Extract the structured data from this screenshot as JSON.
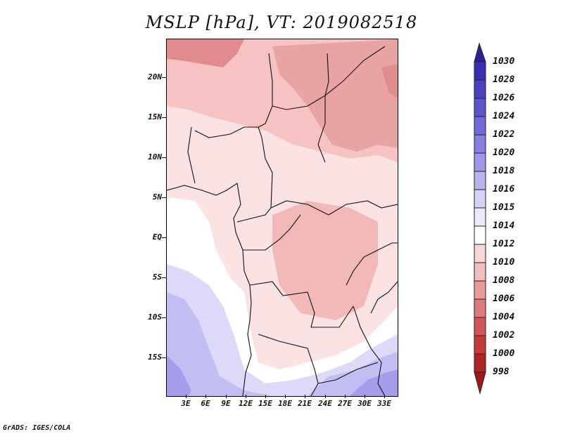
{
  "title": "MSLP [hPa], VT: 2019082518",
  "footer": "GrADS: IGES/COLA",
  "map": {
    "y_labels": [
      "20N",
      "15N",
      "10N",
      "5N",
      "EQ",
      "5S",
      "10S",
      "15S"
    ],
    "x_labels": [
      "3E",
      "6E",
      "9E",
      "12E",
      "15E",
      "18E",
      "21E",
      "24E",
      "27E",
      "30E",
      "33E"
    ],
    "lat_range": [
      -19,
      24
    ],
    "lon_range": [
      0,
      35
    ]
  },
  "colorbar": {
    "levels": [
      "1030",
      "1028",
      "1026",
      "1024",
      "1022",
      "1020",
      "1018",
      "1016",
      "1015",
      "1014",
      "1012",
      "1010",
      "1008",
      "1006",
      "1004",
      "1002",
      "1000",
      "998"
    ],
    "colors": [
      "#2b1f9c",
      "#3a2fb3",
      "#4a40c4",
      "#5c55d0",
      "#7169db",
      "#857ee3",
      "#9e97ea",
      "#b9b4f0",
      "#d4d2f6",
      "#ebeafb",
      "#ffffff",
      "#f8d7d7",
      "#f2bdbd",
      "#e99b9b",
      "#de7a7a",
      "#d45555",
      "#c83838",
      "#b22222",
      "#a01818"
    ]
  }
}
